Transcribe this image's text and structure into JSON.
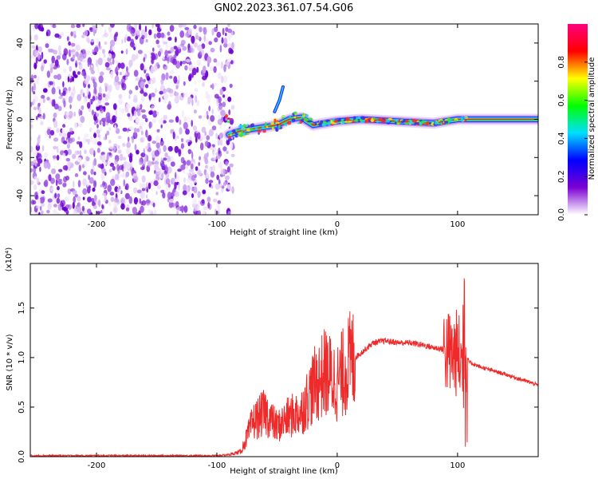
{
  "title": "GN02.2023.361.07.54.G06",
  "colors": {
    "snr_line": "#ee2a2a",
    "frame": "#000000"
  },
  "chart_data": [
    {
      "type": "heatmap",
      "name": "spectrogram",
      "xlabel": "Height of straight line (km)",
      "ylabel": "Frequency (Hz)",
      "xlim": [
        -255,
        167
      ],
      "ylim": [
        -50,
        50
      ],
      "xticks": [
        -200,
        -100,
        0,
        100
      ],
      "yticks": [
        -40,
        -20,
        0,
        20,
        40
      ],
      "colorbar": {
        "label": "Normalized spectral amplitude",
        "range": [
          0,
          1
        ],
        "ticks": [
          "0.0",
          "0.2",
          "0.4",
          "0.6",
          "0.8"
        ],
        "colormap": [
          "#ffffff",
          "#7b00d4",
          "#0000ff",
          "#00e0ff",
          "#00ff00",
          "#ffff00",
          "#ff0000",
          "#ff0080"
        ]
      },
      "noise_region_x": [
        -255,
        -90
      ],
      "signal_ridge": [
        {
          "x": -90,
          "f": -8
        },
        {
          "x": -80,
          "f": -6
        },
        {
          "x": -70,
          "f": -5
        },
        {
          "x": -60,
          "f": -4
        },
        {
          "x": -50,
          "f": -3
        },
        {
          "x": -40,
          "f": 0
        },
        {
          "x": -30,
          "f": 1
        },
        {
          "x": -20,
          "f": -3
        },
        {
          "x": -10,
          "f": -2
        },
        {
          "x": 0,
          "f": -1
        },
        {
          "x": 20,
          "f": 0
        },
        {
          "x": 50,
          "f": -1
        },
        {
          "x": 80,
          "f": -2
        },
        {
          "x": 100,
          "f": 0
        },
        {
          "x": 130,
          "f": 0
        },
        {
          "x": 167,
          "f": 0
        }
      ]
    },
    {
      "type": "line",
      "name": "snr",
      "xlabel": "Height of straight line (km)",
      "ylabel": "SNR (10 * v/v)",
      "y_multiplier": "(x10⁴)",
      "xlim": [
        -255,
        167
      ],
      "ylim": [
        0,
        1.95
      ],
      "xticks": [
        -200,
        -100,
        0,
        100
      ],
      "yticks": [
        "0.0",
        "0.5",
        "1.0",
        "1.5"
      ],
      "x": [
        -255,
        -200,
        -150,
        -100,
        -90,
        -80,
        -70,
        -60,
        -50,
        -40,
        -30,
        -20,
        -10,
        0,
        10,
        20,
        30,
        40,
        50,
        60,
        70,
        80,
        90,
        95,
        100,
        105,
        108,
        110,
        120,
        140,
        160,
        167
      ],
      "values": [
        0.01,
        0.01,
        0.01,
        0.01,
        0.02,
        0.05,
        0.35,
        0.45,
        0.3,
        0.4,
        0.45,
        0.7,
        0.85,
        0.75,
        0.95,
        1.05,
        1.15,
        1.17,
        1.15,
        1.15,
        1.13,
        1.1,
        1.08,
        1.02,
        1.05,
        0.9,
        1.0,
        0.95,
        0.9,
        0.83,
        0.75,
        0.72
      ]
    }
  ]
}
